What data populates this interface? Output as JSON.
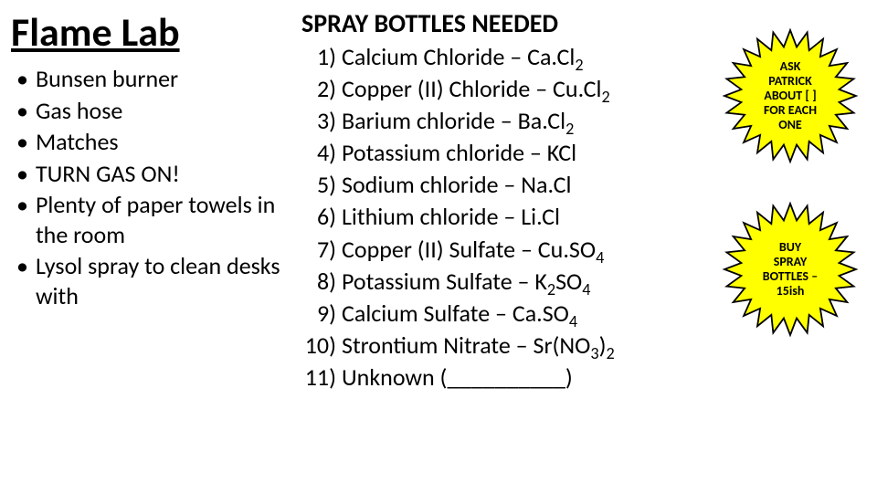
{
  "title": "Flame Lab",
  "left_items": [
    "Bunsen burner",
    "Gas hose",
    "Matches",
    "TURN GAS ON!",
    "Plenty of paper towels in the room",
    "Lysol spray to clean desks with"
  ],
  "center_heading": "SPRAY BOTTLES NEEDED",
  "spray_items": [
    {
      "n": "1)",
      "label": "Calcium Chloride – Ca.Cl",
      "sub": "2",
      "tail": ""
    },
    {
      "n": "2)",
      "label": "Copper (II) Chloride – Cu.Cl",
      "sub": "2",
      "tail": ""
    },
    {
      "n": "3)",
      "label": "Barium chloride – Ba.Cl",
      "sub": "2",
      "tail": ""
    },
    {
      "n": "4)",
      "label": "Potassium chloride – KCl",
      "sub": "",
      "tail": ""
    },
    {
      "n": "5)",
      "label": "Sodium chloride – Na.Cl",
      "sub": "",
      "tail": ""
    },
    {
      "n": "6)",
      "label": "Lithium chloride – Li.Cl",
      "sub": "",
      "tail": ""
    },
    {
      "n": "7)",
      "label": "Copper (II) Sulfate – Cu.SO",
      "sub": "4",
      "tail": ""
    },
    {
      "n": "8)",
      "label": "Potassium Sulfate – K",
      "sub": "2",
      "tail": "SO",
      "sub2": "4"
    },
    {
      "n": "9)",
      "label": "Calcium Sulfate – Ca.SO",
      "sub": "4",
      "tail": ""
    },
    {
      "n": "10)",
      "label": "Strontium Nitrate – Sr(NO",
      "sub": "3",
      "tail": ")",
      "sub2": "2"
    },
    {
      "n": "11)",
      "label": "Unknown (__________)",
      "sub": "",
      "tail": ""
    }
  ],
  "star1_lines": [
    "ASK",
    "PATRICK",
    "ABOUT [  ]",
    "FOR EACH",
    "ONE"
  ],
  "star2_lines": [
    "BUY",
    "SPRAY",
    "BOTTLES –",
    "15ish"
  ],
  "colors": {
    "star_fill": "#ffff00",
    "star_stroke": "#000000",
    "text": "#000000",
    "bg": "#ffffff"
  },
  "fonts": {
    "title_size": 44,
    "body_size": 26,
    "star_size": 14
  }
}
